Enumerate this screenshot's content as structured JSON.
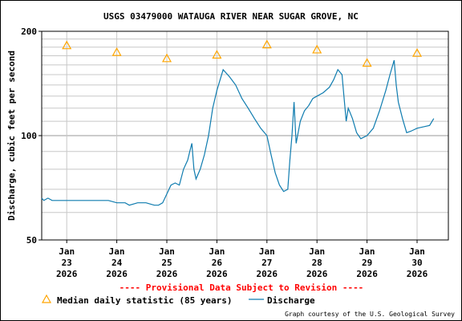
{
  "chart_data": {
    "type": "line",
    "title": "USGS 03479000 WATAUGA RIVER NEAR SUGAR GROVE, NC",
    "ylabel": "Discharge, cubic feet per second",
    "xlabel": "",
    "y_scale": "log",
    "ylim": [
      50,
      200
    ],
    "y_ticks": [
      "50",
      "100",
      "200"
    ],
    "x_range": [
      "2026-01-22T12:00",
      "2026-01-30T15:00"
    ],
    "x_ticks": [
      {
        "date": "2026-01-23",
        "label": [
          "Jan",
          "23",
          "2026"
        ]
      },
      {
        "date": "2026-01-24",
        "label": [
          "Jan",
          "24",
          "2026"
        ]
      },
      {
        "date": "2026-01-25",
        "label": [
          "Jan",
          "25",
          "2026"
        ]
      },
      {
        "date": "2026-01-26",
        "label": [
          "Jan",
          "26",
          "2026"
        ]
      },
      {
        "date": "2026-01-27",
        "label": [
          "Jan",
          "27",
          "2026"
        ]
      },
      {
        "date": "2026-01-28",
        "label": [
          "Jan",
          "28",
          "2026"
        ]
      },
      {
        "date": "2026-01-29",
        "label": [
          "Jan",
          "29",
          "2026"
        ]
      },
      {
        "date": "2026-01-30",
        "label": [
          "Jan",
          "30",
          "2026"
        ]
      }
    ],
    "grid": true,
    "series": [
      {
        "name": "Discharge",
        "color": "#0f7caf",
        "points": [
          [
            "2026-01-22T12:00",
            66
          ],
          [
            "2026-01-22T13:00",
            65
          ],
          [
            "2026-01-22T15:00",
            66
          ],
          [
            "2026-01-22T17:00",
            65
          ],
          [
            "2026-01-23T00:00",
            65
          ],
          [
            "2026-01-23T06:00",
            65
          ],
          [
            "2026-01-23T12:00",
            65
          ],
          [
            "2026-01-23T20:00",
            65
          ],
          [
            "2026-01-24T00:00",
            64
          ],
          [
            "2026-01-24T04:00",
            64
          ],
          [
            "2026-01-24T06:00",
            63
          ],
          [
            "2026-01-24T10:00",
            64
          ],
          [
            "2026-01-24T14:00",
            64
          ],
          [
            "2026-01-24T18:00",
            63
          ],
          [
            "2026-01-24T20:00",
            63
          ],
          [
            "2026-01-24T22:00",
            64
          ],
          [
            "2026-01-25T02:00",
            72
          ],
          [
            "2026-01-25T04:00",
            73
          ],
          [
            "2026-01-25T06:00",
            72
          ],
          [
            "2026-01-25T08:00",
            80
          ],
          [
            "2026-01-25T10:00",
            85
          ],
          [
            "2026-01-25T11:00",
            90
          ],
          [
            "2026-01-25T12:00",
            95
          ],
          [
            "2026-01-25T13:00",
            80
          ],
          [
            "2026-01-25T14:00",
            75
          ],
          [
            "2026-01-25T16:00",
            80
          ],
          [
            "2026-01-25T18:00",
            88
          ],
          [
            "2026-01-25T20:00",
            100
          ],
          [
            "2026-01-25T22:00",
            120
          ],
          [
            "2026-01-26T00:00",
            135
          ],
          [
            "2026-01-26T03:00",
            155
          ],
          [
            "2026-01-26T06:00",
            148
          ],
          [
            "2026-01-26T09:00",
            140
          ],
          [
            "2026-01-26T12:00",
            128
          ],
          [
            "2026-01-26T15:00",
            120
          ],
          [
            "2026-01-26T18:00",
            112
          ],
          [
            "2026-01-26T21:00",
            105
          ],
          [
            "2026-01-27T00:00",
            100
          ],
          [
            "2026-01-27T02:00",
            88
          ],
          [
            "2026-01-27T04:00",
            78
          ],
          [
            "2026-01-27T06:00",
            72
          ],
          [
            "2026-01-27T08:00",
            69
          ],
          [
            "2026-01-27T10:00",
            70
          ],
          [
            "2026-01-27T11:00",
            85
          ],
          [
            "2026-01-27T12:00",
            100
          ],
          [
            "2026-01-27T13:00",
            125
          ],
          [
            "2026-01-27T14:00",
            95
          ],
          [
            "2026-01-27T16:00",
            110
          ],
          [
            "2026-01-27T18:00",
            118
          ],
          [
            "2026-01-27T20:00",
            122
          ],
          [
            "2026-01-27T22:00",
            128
          ],
          [
            "2026-01-28T00:00",
            130
          ],
          [
            "2026-01-28T03:00",
            133
          ],
          [
            "2026-01-28T06:00",
            138
          ],
          [
            "2026-01-28T08:00",
            145
          ],
          [
            "2026-01-28T10:00",
            155
          ],
          [
            "2026-01-28T12:00",
            150
          ],
          [
            "2026-01-28T14:00",
            110
          ],
          [
            "2026-01-28T15:00",
            120
          ],
          [
            "2026-01-28T17:00",
            112
          ],
          [
            "2026-01-28T19:00",
            102
          ],
          [
            "2026-01-28T21:00",
            98
          ],
          [
            "2026-01-29T00:00",
            100
          ],
          [
            "2026-01-29T03:00",
            105
          ],
          [
            "2026-01-29T06:00",
            118
          ],
          [
            "2026-01-29T09:00",
            135
          ],
          [
            "2026-01-29T11:00",
            150
          ],
          [
            "2026-01-29T13:00",
            165
          ],
          [
            "2026-01-29T14:00",
            140
          ],
          [
            "2026-01-29T15:00",
            125
          ],
          [
            "2026-01-29T17:00",
            112
          ],
          [
            "2026-01-29T19:00",
            102
          ],
          [
            "2026-01-29T21:00",
            103
          ],
          [
            "2026-01-30T00:00",
            105
          ],
          [
            "2026-01-30T03:00",
            106
          ],
          [
            "2026-01-30T06:00",
            107
          ],
          [
            "2026-01-30T08:00",
            112
          ]
        ]
      },
      {
        "name": "Median daily statistic (85 years)",
        "color": "#ffa500",
        "marker": "triangle",
        "points": [
          [
            "2026-01-23T00:00",
            182
          ],
          [
            "2026-01-24T00:00",
            174
          ],
          [
            "2026-01-25T00:00",
            167
          ],
          [
            "2026-01-26T00:00",
            171
          ],
          [
            "2026-01-27T00:00",
            183
          ],
          [
            "2026-01-28T00:00",
            177
          ],
          [
            "2026-01-29T00:00",
            162
          ],
          [
            "2026-01-30T00:00",
            173
          ]
        ]
      }
    ],
    "legend_position": "bottom",
    "provisional_notice": "---- Provisional Data Subject to Revision ----",
    "credit": "Graph courtesy of the U.S. Geological Survey"
  }
}
